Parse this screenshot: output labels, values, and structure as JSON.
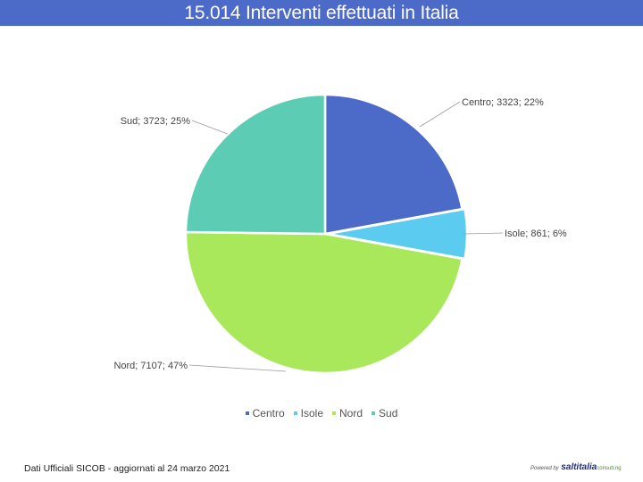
{
  "header": {
    "title": "15.014 Interventi effettuati in Italia"
  },
  "chart_data": {
    "type": "pie",
    "categories": [
      "Centro",
      "Isole",
      "Nord",
      "Sud"
    ],
    "values": [
      3323,
      861,
      7107,
      3723
    ],
    "percent_labels": [
      "22%",
      "6%",
      "47%",
      "25%"
    ],
    "data_labels": [
      "Centro; 3323; 22%",
      "Isole; 861; 6%",
      "Nord; 7107; 47%",
      "Sud; 3723; 25%"
    ],
    "colors": [
      "#4c6ac8",
      "#5ccbf0",
      "#a8e85a",
      "#5ccdb4"
    ],
    "legend_position": "bottom",
    "start_angle": "12 o'clock, clockwise"
  },
  "footer": {
    "source_note": "Dati Ufficiali SICOB - aggiornati al 24 marzo 2021"
  },
  "brand": {
    "prefix": "Powered by",
    "name": "saltitalia",
    "suffix": "consult.ng"
  }
}
